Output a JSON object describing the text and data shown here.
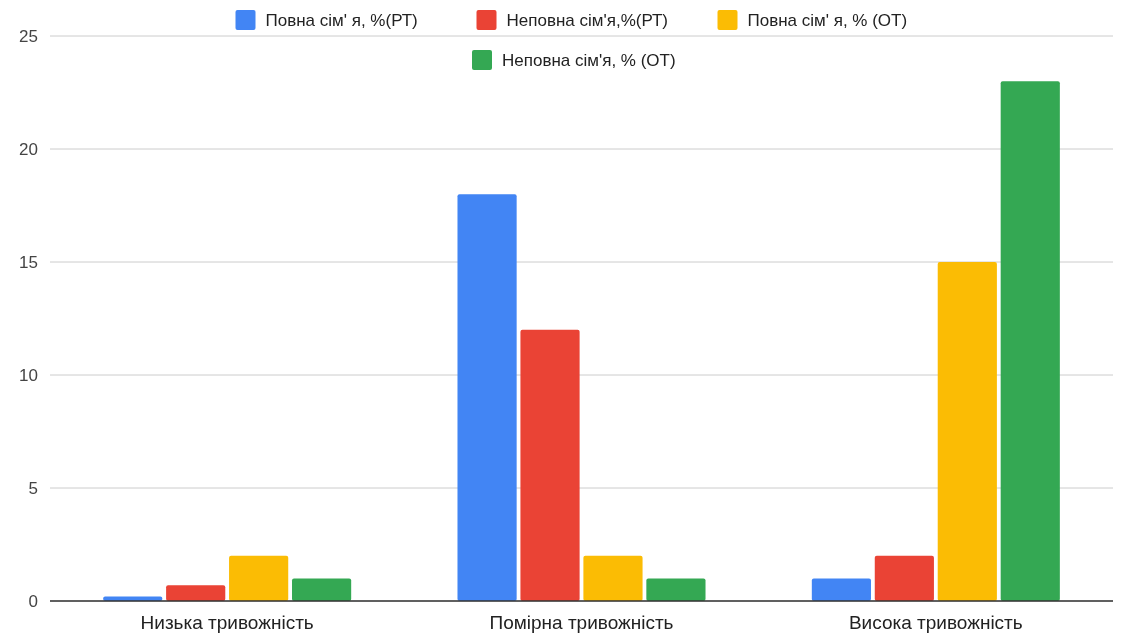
{
  "chart_data": {
    "type": "bar",
    "categories": [
      "Низька тривожність",
      "Помірна тривожність",
      "Висока тривожність"
    ],
    "series": [
      {
        "name": "Повна сім' я, %(РТ)",
        "color": "#4285f4",
        "values": [
          0.2,
          18,
          1
        ]
      },
      {
        "name": "Неповна сім'я,%(РТ)",
        "color": "#ea4335",
        "values": [
          0.7,
          12,
          2
        ]
      },
      {
        "name": "Повна сім' я, % (ОТ)",
        "color": "#fbbc04",
        "values": [
          2,
          2,
          15
        ]
      },
      {
        "name": "Неповна сім'я, % (ОТ)",
        "color": "#34a853",
        "values": [
          1,
          1,
          23
        ]
      }
    ],
    "ylim": [
      0,
      25
    ],
    "yticks": [
      0,
      5,
      10,
      15,
      20,
      25
    ],
    "grid": "y",
    "legend": "top"
  }
}
